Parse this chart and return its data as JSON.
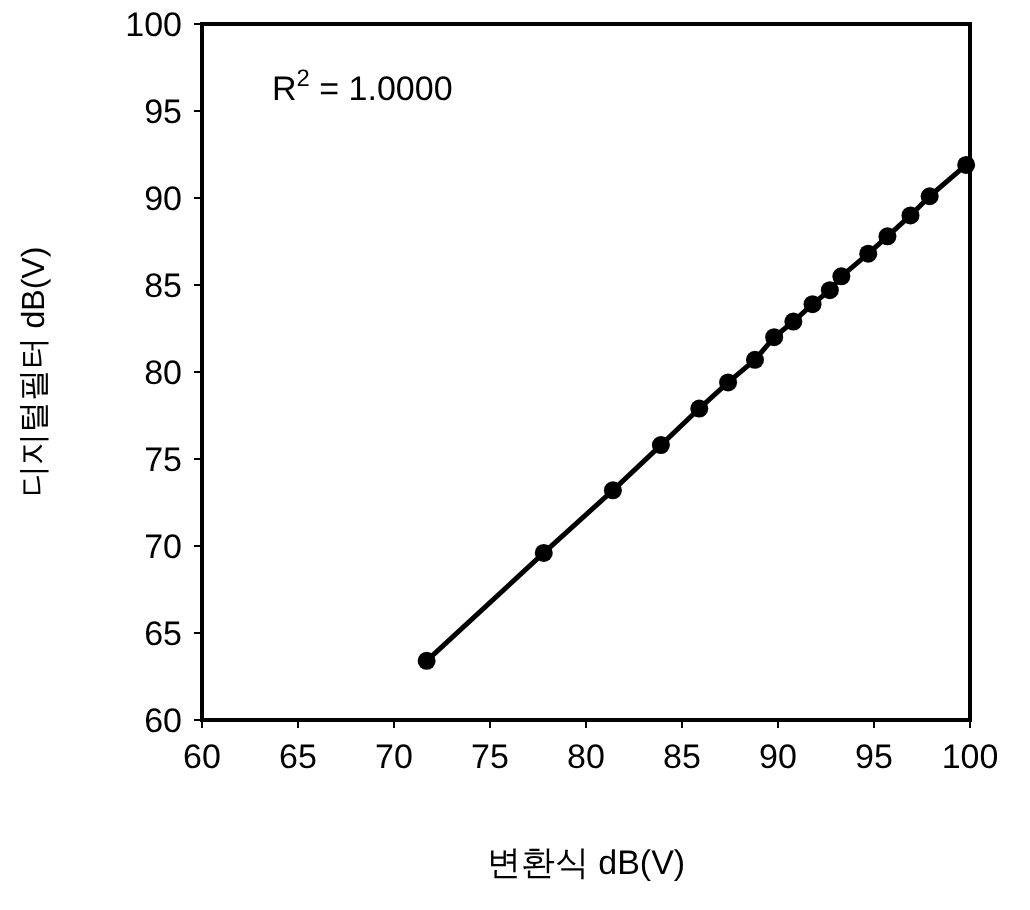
{
  "chart_data": {
    "type": "line",
    "xlabel": "변환식 dB(V)",
    "ylabel": "디지털필터 dB(V)",
    "annotations": [
      "R$^{2}$ = 1.0000"
    ],
    "x": [
      71.7,
      77.8,
      81.4,
      83.9,
      85.9,
      87.4,
      88.8,
      89.8,
      90.8,
      91.8,
      92.7,
      93.3,
      94.7,
      95.7,
      96.9,
      97.9,
      99.8
    ],
    "series": [
      {
        "color": "#000000",
        "values": [
          63.4,
          69.6,
          73.2,
          75.8,
          77.9,
          79.4,
          80.7,
          82.0,
          82.9,
          83.9,
          84.7,
          85.5,
          86.8,
          87.8,
          89.0,
          90.1,
          91.9
        ]
      }
    ],
    "xlim": [
      60,
      100
    ],
    "xticks": [
      60,
      65,
      70,
      75,
      80,
      85,
      90,
      95,
      100
    ],
    "ylim": [
      60,
      100
    ],
    "yticks": [
      60,
      65,
      70,
      75,
      80,
      85,
      90,
      95,
      100
    ],
    "marker": "circle",
    "line_style": "solid",
    "grid": false
  }
}
